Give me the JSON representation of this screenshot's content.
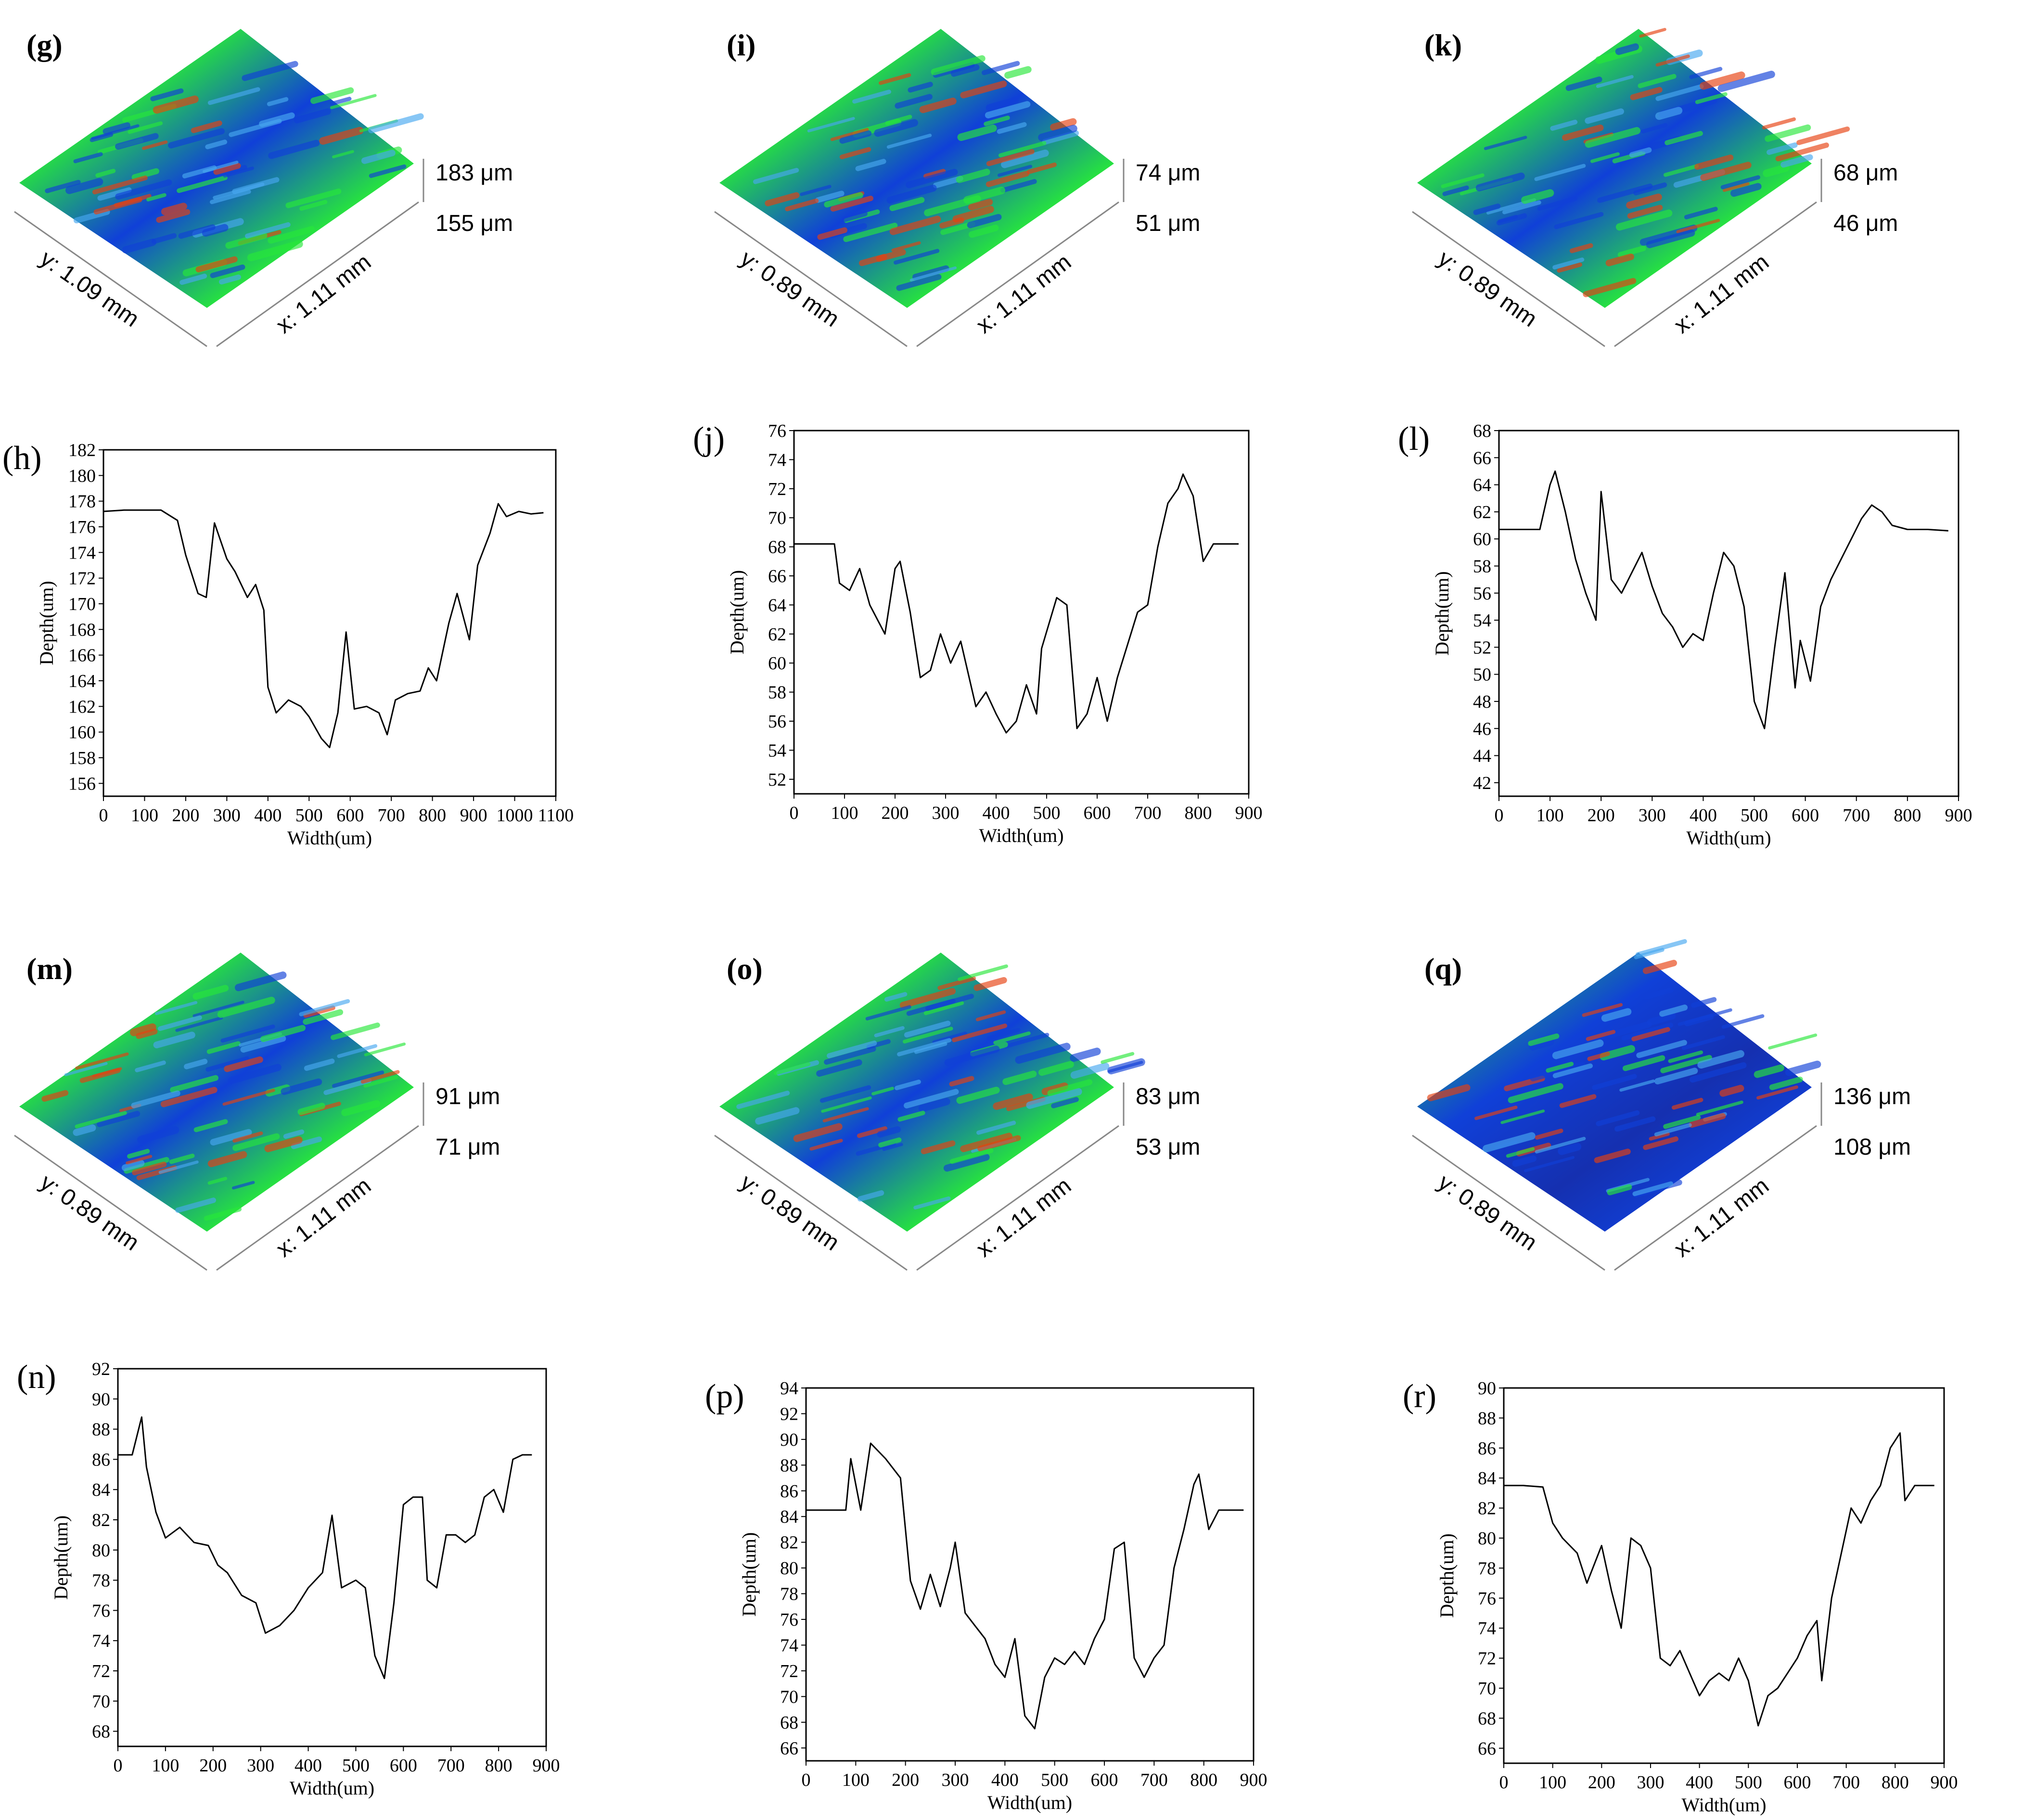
{
  "surfaces": [
    {
      "label": "(g)",
      "top": "183 μm",
      "bottom": "155 μm",
      "y_dim": "y: 1.09 mm",
      "x_dim": "x: 1.11 mm"
    },
    {
      "label": "(i)",
      "top": "74 μm",
      "bottom": "51 μm",
      "y_dim": "y: 0.89 mm",
      "x_dim": "x: 1.11 mm"
    },
    {
      "label": "(k)",
      "top": "68 μm",
      "bottom": "46 μm",
      "y_dim": "y: 0.89 mm",
      "x_dim": "x: 1.11 mm"
    },
    {
      "label": "(m)",
      "top": "91 μm",
      "bottom": "71 μm",
      "y_dim": "y: 0.89 mm",
      "x_dim": "x: 1.11 mm"
    },
    {
      "label": "(o)",
      "top": "83 μm",
      "bottom": "53 μm",
      "y_dim": "y: 0.89 mm",
      "x_dim": "x: 1.11 mm"
    },
    {
      "label": "(q)",
      "top": "136 μm",
      "bottom": "108 μm",
      "y_dim": "y: 0.89 mm",
      "x_dim": "x: 1.11 mm"
    }
  ],
  "colors": {
    "line": "#000000",
    "high": "#e8400f",
    "mid": "#27e83a",
    "low": "#1040d8",
    "plane": "#b9b21c"
  },
  "chart_data": [
    {
      "type": "line",
      "label": "(h)",
      "xlabel": "Width(um)",
      "ylabel": "Depth(um)",
      "xlim": [
        0,
        1100
      ],
      "ylim": [
        155,
        182
      ],
      "xticks": [
        0,
        100,
        200,
        300,
        400,
        500,
        600,
        700,
        800,
        900,
        1000,
        1100
      ],
      "xtick_labels": [
        "0",
        "100",
        "200",
        "300",
        "400",
        "500",
        "600",
        "700",
        "800",
        "900",
        "1000",
        "1100"
      ],
      "yticks": [
        156,
        158,
        160,
        162,
        164,
        166,
        168,
        170,
        172,
        174,
        176,
        178,
        180,
        182
      ],
      "x": [
        0,
        50,
        100,
        140,
        180,
        200,
        230,
        250,
        270,
        300,
        320,
        350,
        370,
        390,
        400,
        420,
        450,
        480,
        500,
        530,
        550,
        570,
        590,
        610,
        640,
        670,
        690,
        710,
        740,
        770,
        790,
        810,
        840,
        860,
        890,
        910,
        940,
        960,
        980,
        1010,
        1040,
        1070
      ],
      "y": [
        177.2,
        177.3,
        177.3,
        177.3,
        176.5,
        173.8,
        170.8,
        170.5,
        176.3,
        173.5,
        172.5,
        170.5,
        171.5,
        169.5,
        163.5,
        161.5,
        162.5,
        162.0,
        161.2,
        159.5,
        158.8,
        161.5,
        167.8,
        161.8,
        162.0,
        161.5,
        159.8,
        162.5,
        163.0,
        163.2,
        165.0,
        164.0,
        168.5,
        170.8,
        167.2,
        173.0,
        175.5,
        177.8,
        176.8,
        177.2,
        177.0,
        177.1
      ]
    },
    {
      "type": "line",
      "label": "(j)",
      "xlabel": "Width(um)",
      "ylabel": "Depth(um)",
      "xlim": [
        0,
        900
      ],
      "ylim": [
        51,
        76
      ],
      "xticks": [
        0,
        100,
        200,
        300,
        400,
        500,
        600,
        700,
        800,
        900
      ],
      "xtick_labels": [
        "0",
        "100",
        "200",
        "300",
        "400",
        "500",
        "600",
        "700",
        "800",
        "900"
      ],
      "yticks": [
        52,
        54,
        56,
        58,
        60,
        62,
        64,
        66,
        68,
        70,
        72,
        74,
        76
      ],
      "x": [
        0,
        40,
        80,
        90,
        110,
        130,
        150,
        180,
        200,
        210,
        230,
        250,
        270,
        290,
        310,
        330,
        360,
        380,
        400,
        420,
        440,
        460,
        480,
        490,
        520,
        540,
        560,
        580,
        600,
        620,
        640,
        680,
        700,
        720,
        740,
        760,
        770,
        790,
        810,
        830,
        850,
        880
      ],
      "y": [
        68.2,
        68.2,
        68.2,
        65.5,
        65.0,
        66.5,
        64.0,
        62.0,
        66.5,
        67.0,
        63.5,
        59.0,
        59.5,
        62.0,
        60.0,
        61.5,
        57.0,
        58.0,
        56.5,
        55.2,
        56.0,
        58.5,
        56.5,
        61.0,
        64.5,
        64.0,
        55.5,
        56.5,
        59.0,
        56.0,
        59.0,
        63.5,
        64.0,
        68.0,
        71.0,
        72.0,
        73.0,
        71.5,
        67.0,
        68.2,
        68.2,
        68.2
      ]
    },
    {
      "type": "line",
      "label": "(l)",
      "xlabel": "Width(um)",
      "ylabel": "Depth(um)",
      "xlim": [
        0,
        900
      ],
      "ylim": [
        41,
        68
      ],
      "xticks": [
        0,
        100,
        200,
        300,
        400,
        500,
        600,
        700,
        800,
        900
      ],
      "xtick_labels": [
        "0",
        "100",
        "200",
        "300",
        "400",
        "500",
        "600",
        "700",
        "800",
        "900"
      ],
      "yticks": [
        42,
        44,
        46,
        48,
        50,
        52,
        54,
        56,
        58,
        60,
        62,
        64,
        66,
        68
      ],
      "x": [
        0,
        40,
        80,
        100,
        110,
        130,
        150,
        170,
        190,
        200,
        220,
        240,
        260,
        280,
        300,
        320,
        340,
        360,
        380,
        400,
        420,
        440,
        460,
        480,
        500,
        520,
        540,
        560,
        580,
        590,
        610,
        630,
        650,
        670,
        690,
        710,
        730,
        750,
        770,
        800,
        840,
        880
      ],
      "y": [
        60.7,
        60.7,
        60.7,
        64.0,
        65.0,
        62.0,
        58.5,
        56.0,
        54.0,
        63.5,
        57.0,
        56.0,
        57.5,
        59.0,
        56.5,
        54.5,
        53.5,
        52.0,
        53.0,
        52.5,
        56.0,
        59.0,
        58.0,
        55.0,
        48.0,
        46.0,
        52.0,
        57.5,
        49.0,
        52.5,
        49.5,
        55.0,
        57.0,
        58.5,
        60.0,
        61.5,
        62.5,
        62.0,
        61.0,
        60.7,
        60.7,
        60.6
      ]
    },
    {
      "type": "line",
      "label": "(n)",
      "xlabel": "Width(um)",
      "ylabel": "Depth(um)",
      "xlim": [
        0,
        900
      ],
      "ylim": [
        67,
        92
      ],
      "xticks": [
        0,
        100,
        200,
        300,
        400,
        500,
        600,
        700,
        800,
        900
      ],
      "xtick_labels": [
        "0",
        "100",
        "200",
        "300",
        "400",
        "500",
        "600",
        "700",
        "800",
        "900"
      ],
      "yticks": [
        68,
        70,
        72,
        74,
        76,
        78,
        80,
        82,
        84,
        86,
        88,
        90,
        92
      ],
      "x": [
        0,
        30,
        50,
        60,
        80,
        100,
        130,
        160,
        190,
        210,
        230,
        260,
        290,
        310,
        340,
        370,
        400,
        430,
        450,
        470,
        500,
        520,
        540,
        560,
        580,
        600,
        620,
        640,
        650,
        670,
        690,
        710,
        730,
        750,
        770,
        790,
        810,
        830,
        850,
        870
      ],
      "y": [
        86.3,
        86.3,
        88.8,
        85.5,
        82.5,
        80.8,
        81.5,
        80.5,
        80.3,
        79.0,
        78.5,
        77.0,
        76.5,
        74.5,
        75.0,
        76.0,
        77.5,
        78.5,
        82.3,
        77.5,
        78.0,
        77.5,
        73.0,
        71.5,
        76.5,
        83.0,
        83.5,
        83.5,
        78.0,
        77.5,
        81.0,
        81.0,
        80.5,
        81.0,
        83.5,
        84.0,
        82.5,
        86.0,
        86.3,
        86.3
      ]
    },
    {
      "type": "line",
      "label": "(p)",
      "xlabel": "Width(um)",
      "ylabel": "Depth(um)",
      "xlim": [
        0,
        900
      ],
      "ylim": [
        65,
        94
      ],
      "xticks": [
        0,
        100,
        200,
        300,
        400,
        500,
        600,
        700,
        800,
        900
      ],
      "xtick_labels": [
        "0",
        "100",
        "200",
        "300",
        "400",
        "500",
        "600",
        "700",
        "800",
        "900"
      ],
      "yticks": [
        66,
        68,
        70,
        72,
        74,
        76,
        78,
        80,
        82,
        84,
        86,
        88,
        90,
        92,
        94
      ],
      "x": [
        0,
        60,
        80,
        90,
        110,
        130,
        160,
        190,
        210,
        230,
        250,
        270,
        290,
        300,
        320,
        340,
        360,
        380,
        400,
        420,
        440,
        460,
        480,
        500,
        520,
        540,
        560,
        580,
        600,
        620,
        640,
        660,
        680,
        700,
        720,
        740,
        760,
        780,
        790,
        810,
        830,
        860,
        880
      ],
      "y": [
        84.5,
        84.5,
        84.5,
        88.5,
        84.5,
        89.7,
        88.5,
        87.0,
        79.0,
        76.8,
        79.5,
        77.0,
        80.0,
        82.0,
        76.5,
        75.5,
        74.5,
        72.5,
        71.5,
        74.5,
        68.5,
        67.5,
        71.5,
        73.0,
        72.5,
        73.5,
        72.5,
        74.5,
        76.0,
        81.5,
        82.0,
        73.0,
        71.5,
        73.0,
        74.0,
        80.0,
        83.0,
        86.5,
        87.3,
        83.0,
        84.5,
        84.5,
        84.5
      ]
    },
    {
      "type": "line",
      "label": "(r)",
      "xlabel": "Width(um)",
      "ylabel": "Depth(um)",
      "xlim": [
        0,
        900
      ],
      "ylim": [
        65,
        90
      ],
      "xticks": [
        0,
        100,
        200,
        300,
        400,
        500,
        600,
        700,
        800,
        900
      ],
      "xtick_labels": [
        "0",
        "100",
        "200",
        "300",
        "400",
        "500",
        "600",
        "700",
        "800",
        "900"
      ],
      "yticks": [
        66,
        68,
        70,
        72,
        74,
        76,
        78,
        80,
        82,
        84,
        86,
        88,
        90
      ],
      "x": [
        0,
        40,
        80,
        100,
        120,
        150,
        170,
        200,
        220,
        240,
        260,
        280,
        300,
        320,
        340,
        360,
        380,
        400,
        420,
        440,
        460,
        480,
        500,
        520,
        540,
        560,
        580,
        600,
        620,
        640,
        650,
        670,
        690,
        710,
        730,
        750,
        770,
        790,
        810,
        820,
        840,
        860,
        880
      ],
      "y": [
        83.5,
        83.5,
        83.4,
        81.0,
        80.0,
        79.0,
        77.0,
        79.5,
        76.5,
        74.0,
        80.0,
        79.5,
        78.0,
        72.0,
        71.5,
        72.5,
        71.0,
        69.5,
        70.5,
        71.0,
        70.5,
        72.0,
        70.5,
        67.5,
        69.5,
        70.0,
        71.0,
        72.0,
        73.5,
        74.5,
        70.5,
        76.0,
        79.0,
        82.0,
        81.0,
        82.5,
        83.5,
        86.0,
        87.0,
        82.5,
        83.5,
        83.5,
        83.5
      ]
    }
  ]
}
